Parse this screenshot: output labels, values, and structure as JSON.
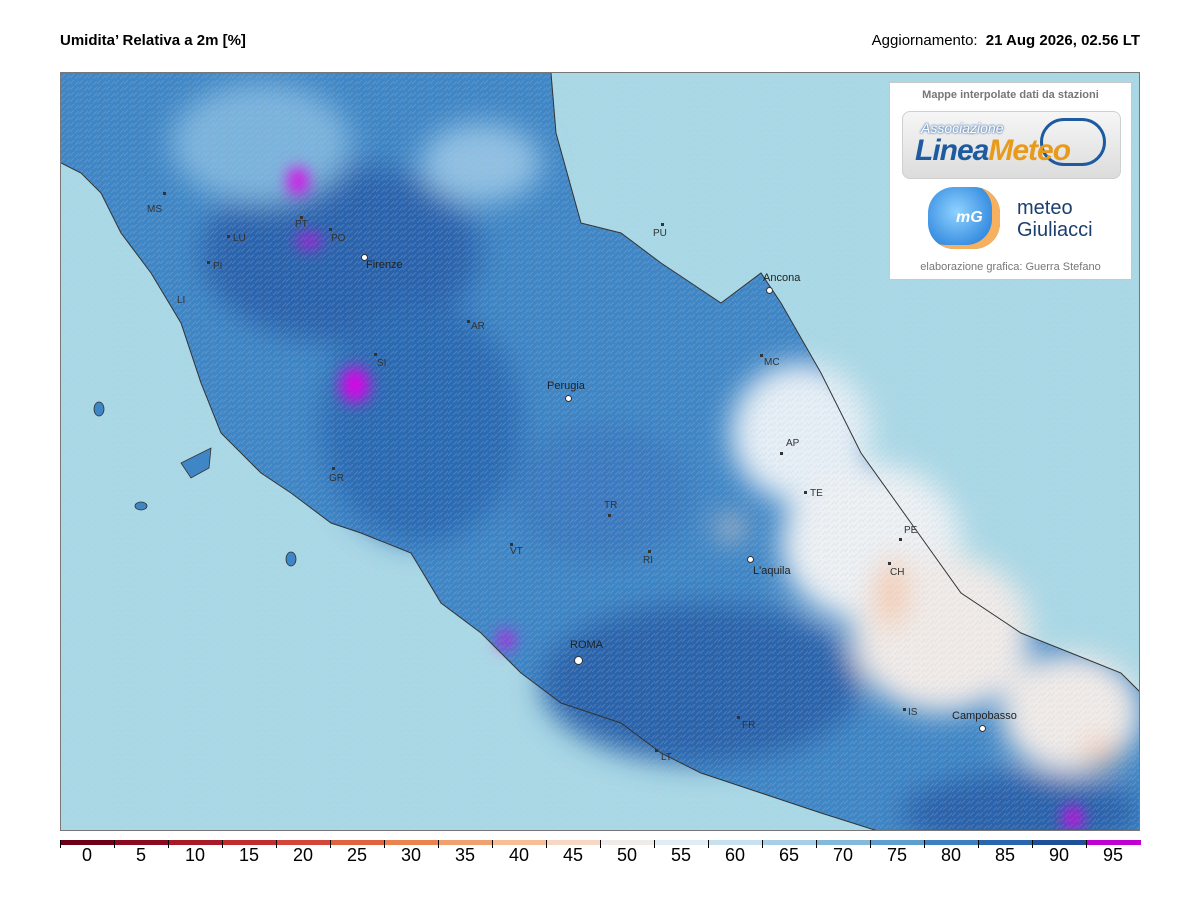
{
  "header": {
    "title": "Umidita’ Relativa a 2m [%]",
    "update_label": "Aggiornamento:",
    "update_value": "21 Aug 2026, 02.56 LT"
  },
  "logo_panel": {
    "caption": "Mappe interpolate dati da stazioni",
    "linea_assoc": "Associazione",
    "linea_name_a": "Linea",
    "linea_name_b": "Meteo",
    "mg_short": "mG",
    "mg_name_1": "meteo",
    "mg_name_2": "Giuliacci",
    "credit": "elaborazione grafica: Guerra Stefano"
  },
  "cities_major": [
    "Firenze",
    "Ancona",
    "Perugia",
    "L'aquila",
    "ROMA",
    "Campobasso"
  ],
  "cities_minor": [
    "MS",
    "LU",
    "PT",
    "PO",
    "PI",
    "LI",
    "AR",
    "SI",
    "GR",
    "PU",
    "MC",
    "AP",
    "TE",
    "PE",
    "CH",
    "TR",
    "VT",
    "RI",
    "IS",
    "FR",
    "LT"
  ],
  "colorbar": {
    "ticks": [
      "0",
      "5",
      "10",
      "15",
      "20",
      "25",
      "30",
      "35",
      "40",
      "45",
      "50",
      "55",
      "60",
      "65",
      "70",
      "75",
      "80",
      "85",
      "90",
      "95"
    ],
    "colors": [
      "#6b0016",
      "#8a0a1f",
      "#a81a28",
      "#c12c2e",
      "#d4463a",
      "#e0623f",
      "#ea8350",
      "#f1a070",
      "#f6bf98",
      "#f7d8c4",
      "#f1ebe8",
      "#e1ecf4",
      "#c9e0ee",
      "#a9cfe6",
      "#84b9dc",
      "#5f9fcf",
      "#3d80c1",
      "#2a66b0",
      "#1f4f98",
      "#c000d0"
    ]
  },
  "colors": {
    "sea": "#a9d8e6",
    "land_base": "#3f86c6",
    "high_humidity": "#1f4f98",
    "saturation": "#e000e8"
  }
}
